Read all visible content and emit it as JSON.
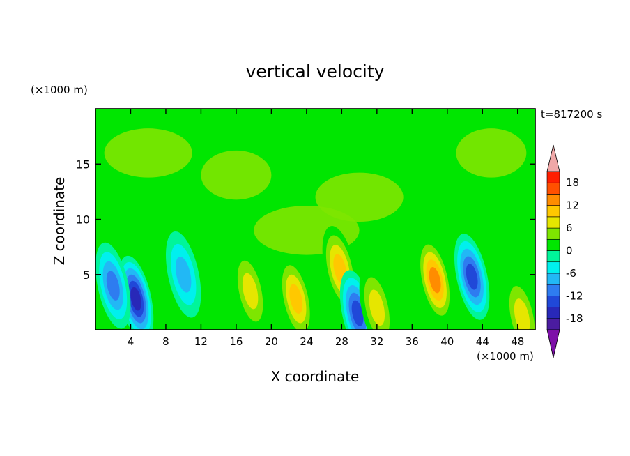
{
  "chart_data": {
    "type": "heatmap",
    "title": "vertical velocity",
    "xlabel": "X coordinate",
    "ylabel": "Z coordinate",
    "x_unit": "(×1000 m)",
    "y_unit": "(×1000 m)",
    "time_label": "t=817200 s",
    "xlim": [
      0,
      50
    ],
    "ylim": [
      0,
      20
    ],
    "x_ticks": [
      4,
      8,
      12,
      16,
      20,
      24,
      28,
      32,
      36,
      40,
      44,
      48
    ],
    "y_ticks": [
      5,
      10,
      15
    ],
    "colorbar": {
      "levels": [
        -21,
        -18,
        -15,
        -12,
        -9,
        -6,
        -3,
        0,
        3,
        6,
        9,
        12,
        15,
        18,
        21
      ],
      "tick_labels": [
        18,
        12,
        6,
        0,
        -6,
        -12,
        -18
      ],
      "extend": "both",
      "colors": [
        "#7d10a8",
        "#4b1ca0",
        "#2828b8",
        "#2048d8",
        "#2e7cf0",
        "#22b8f5",
        "#00f0ee",
        "#00f59a",
        "#00e600",
        "#7ee600",
        "#e6e600",
        "#ffc800",
        "#ff8c00",
        "#ff5000",
        "#ff1e00",
        "#f0a8a8"
      ]
    },
    "features": [
      {
        "x": 4.6,
        "z": 2.8,
        "value": -14
      },
      {
        "x": 2.0,
        "z": 4.0,
        "value": -8
      },
      {
        "x": 10.0,
        "z": 5.0,
        "value": -6
      },
      {
        "x": 17.6,
        "z": 3.5,
        "value": 6
      },
      {
        "x": 22.8,
        "z": 2.8,
        "value": 9
      },
      {
        "x": 27.8,
        "z": 5.5,
        "value": 7
      },
      {
        "x": 29.8,
        "z": 1.5,
        "value": -12
      },
      {
        "x": 32.0,
        "z": 2.0,
        "value": 4
      },
      {
        "x": 38.6,
        "z": 4.5,
        "value": 10
      },
      {
        "x": 42.8,
        "z": 4.8,
        "value": -12
      },
      {
        "x": 48.5,
        "z": 1.2,
        "value": 4
      }
    ]
  }
}
